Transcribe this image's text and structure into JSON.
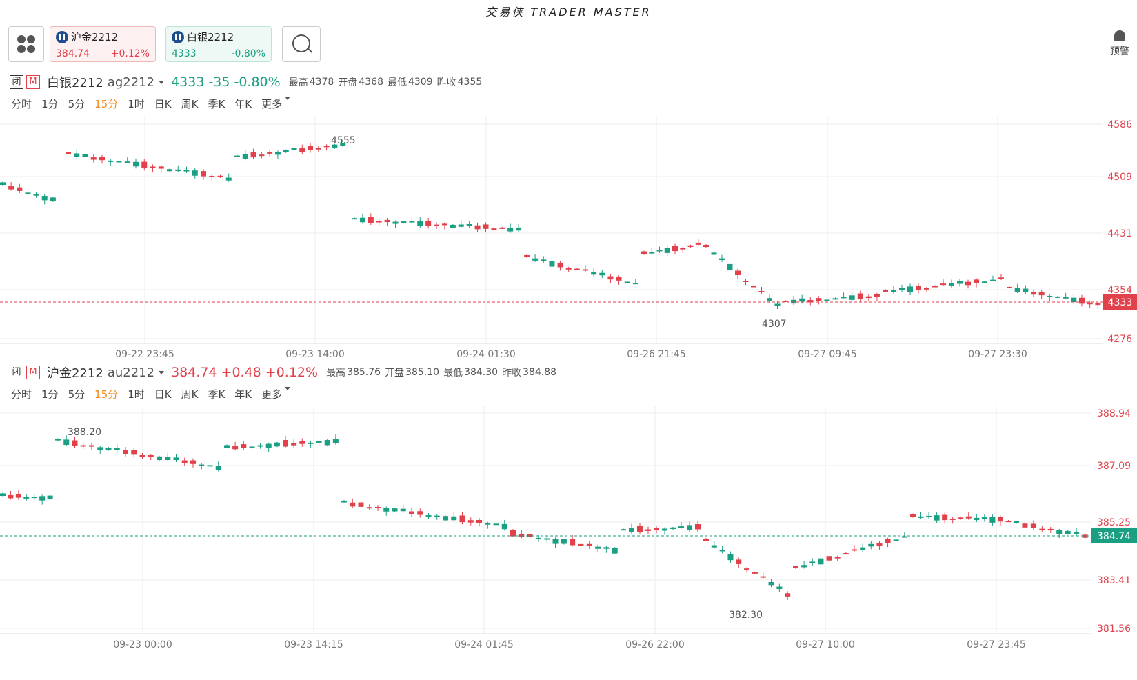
{
  "app": {
    "title": "交易侠 TRADER MASTER"
  },
  "quotes": [
    {
      "name": "沪金2212",
      "price": "384.74",
      "change": "+0.12%"
    },
    {
      "name": "白银2212",
      "price": "4333",
      "change": "-0.80%"
    }
  ],
  "alert": {
    "label": "预警"
  },
  "tag_closed": "闭",
  "tag_m": "M",
  "timeframes": [
    "分时",
    "1分",
    "5分",
    "15分",
    "1时",
    "日K",
    "周K",
    "季K",
    "年K",
    "更多"
  ],
  "active_timeframe": "15分",
  "colors": {
    "up": "#e0414b",
    "down": "#1a9f82",
    "grid": "#eeeeee"
  },
  "panels": [
    {
      "name": "白银2212",
      "code": "ag2212",
      "last": "4333",
      "chg": "-35",
      "pct": "-0.80%",
      "dir": "down",
      "high_label": "最高",
      "high": "4378",
      "open_label": "开盘",
      "open": "4368",
      "low_label": "最低",
      "low": "4309",
      "prev_label": "昨收",
      "prev": "4355",
      "chart_data": {
        "type": "candlestick",
        "y_ticks": [
          "4586",
          "4509",
          "4431",
          "4354",
          "4276"
        ],
        "x_ticks": [
          "09-22 23:45",
          "09-23 14:00",
          "09-24 01:30",
          "09-26 21:45",
          "09-27 09:45",
          "09-27 23:30"
        ],
        "last_price": "4333",
        "max_label": "4555",
        "min_label": "4307"
      }
    },
    {
      "name": "沪金2212",
      "code": "au2212",
      "last": "384.74",
      "chg": "+0.48",
      "pct": "+0.12%",
      "dir": "up",
      "high_label": "最高",
      "high": "385.76",
      "open_label": "开盘",
      "open": "385.10",
      "low_label": "最低",
      "low": "384.30",
      "prev_label": "昨收",
      "prev": "384.88",
      "chart_data": {
        "type": "candlestick",
        "y_ticks": [
          "388.94",
          "387.09",
          "385.25",
          "383.41",
          "381.56"
        ],
        "x_ticks": [
          "09-23 00:00",
          "09-23 14:15",
          "09-24 01:45",
          "09-26 22:00",
          "09-27 10:00",
          "09-27 23:45"
        ],
        "last_price": "384.74",
        "max_label": "388.20",
        "min_label": "382.30"
      }
    }
  ]
}
